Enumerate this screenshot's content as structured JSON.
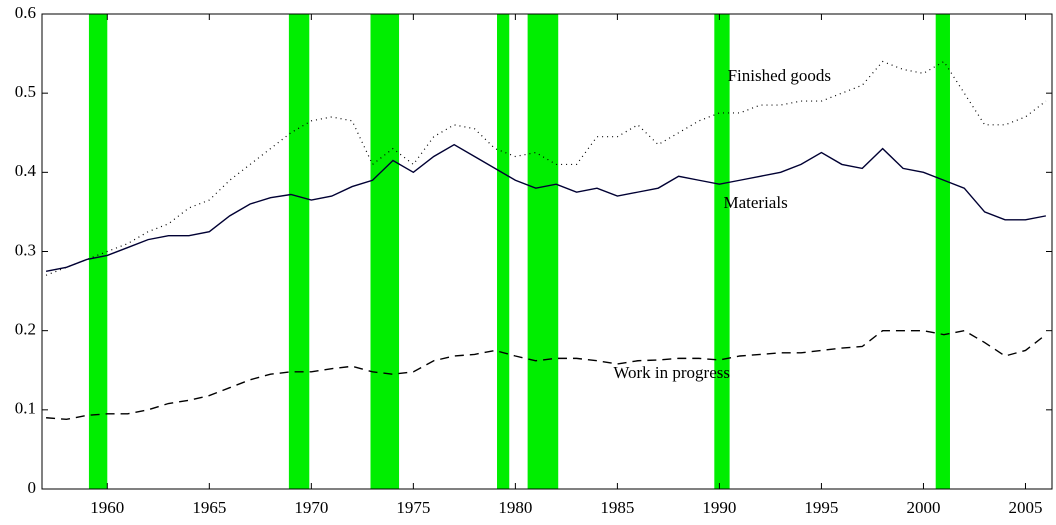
{
  "chart_data": {
    "type": "line",
    "x": [
      1957,
      1958,
      1959,
      1960,
      1961,
      1962,
      1963,
      1964,
      1965,
      1966,
      1967,
      1968,
      1969,
      1970,
      1971,
      1972,
      1973,
      1974,
      1975,
      1976,
      1977,
      1978,
      1979,
      1980,
      1981,
      1982,
      1983,
      1984,
      1985,
      1986,
      1987,
      1988,
      1989,
      1990,
      1991,
      1992,
      1993,
      1994,
      1995,
      1996,
      1997,
      1998,
      1999,
      2000,
      2001,
      2002,
      2003,
      2004,
      2005,
      2006
    ],
    "series": [
      {
        "name": "Finished goods",
        "color": "#000000",
        "style": "dotted",
        "values": [
          0.27,
          0.28,
          0.29,
          0.3,
          0.31,
          0.325,
          0.335,
          0.355,
          0.365,
          0.39,
          0.41,
          0.43,
          0.45,
          0.465,
          0.47,
          0.465,
          0.41,
          0.43,
          0.41,
          0.445,
          0.46,
          0.455,
          0.43,
          0.42,
          0.425,
          0.41,
          0.41,
          0.445,
          0.445,
          0.46,
          0.435,
          0.45,
          0.465,
          0.475,
          0.475,
          0.485,
          0.485,
          0.49,
          0.49,
          0.5,
          0.51,
          0.54,
          0.53,
          0.525,
          0.54,
          0.5,
          0.46,
          0.46,
          0.47,
          0.49
        ]
      },
      {
        "name": "Materials",
        "color": "#000033",
        "style": "solid",
        "values": [
          0.275,
          0.28,
          0.29,
          0.295,
          0.305,
          0.315,
          0.32,
          0.32,
          0.325,
          0.345,
          0.36,
          0.368,
          0.372,
          0.365,
          0.37,
          0.382,
          0.39,
          0.415,
          0.4,
          0.42,
          0.435,
          0.42,
          0.405,
          0.39,
          0.38,
          0.385,
          0.375,
          0.38,
          0.37,
          0.375,
          0.38,
          0.395,
          0.39,
          0.385,
          0.39,
          0.395,
          0.4,
          0.41,
          0.425,
          0.41,
          0.405,
          0.43,
          0.405,
          0.4,
          0.39,
          0.38,
          0.35,
          0.34,
          0.34,
          0.345
        ]
      },
      {
        "name": "Work in progress",
        "color": "#000000",
        "style": "dashed",
        "values": [
          0.09,
          0.088,
          0.093,
          0.095,
          0.095,
          0.1,
          0.108,
          0.112,
          0.118,
          0.128,
          0.138,
          0.145,
          0.148,
          0.148,
          0.152,
          0.155,
          0.148,
          0.145,
          0.148,
          0.162,
          0.168,
          0.17,
          0.175,
          0.168,
          0.162,
          0.165,
          0.165,
          0.162,
          0.158,
          0.162,
          0.163,
          0.165,
          0.165,
          0.163,
          0.168,
          0.17,
          0.172,
          0.172,
          0.175,
          0.178,
          0.18,
          0.2,
          0.2,
          0.2,
          0.195,
          0.2,
          0.185,
          0.168,
          0.175,
          0.195
        ]
      }
    ],
    "shaded_periods": [
      [
        1959.1,
        1960.0
      ],
      [
        1968.9,
        1969.9
      ],
      [
        1972.9,
        1974.3
      ],
      [
        1979.1,
        1979.7
      ],
      [
        1980.6,
        1982.1
      ],
      [
        1989.75,
        1990.5
      ],
      [
        2000.6,
        2001.3
      ]
    ],
    "shade_color": "#00ee00",
    "xlim": [
      1956.8,
      2006.3
    ],
    "xticks": [
      1960,
      1965,
      1970,
      1975,
      1980,
      1985,
      1990,
      1995,
      2000,
      2005
    ],
    "ylim": [
      0,
      0.6
    ],
    "yticks": [
      0,
      0.1,
      0.2,
      0.3,
      0.4,
      0.5,
      0.6
    ]
  }
}
